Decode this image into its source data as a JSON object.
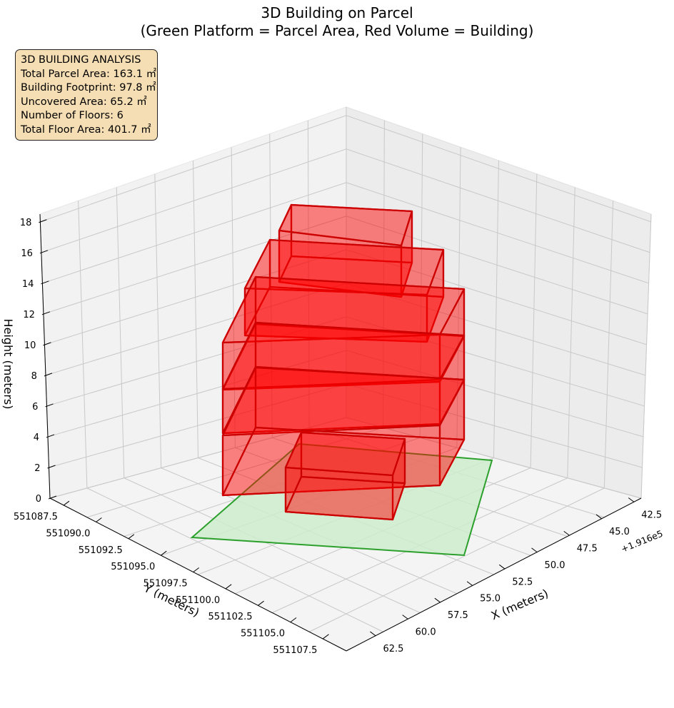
{
  "chart_data": {
    "type": "3d-box",
    "title": "3D Building on Parcel",
    "subtitle": "(Green Platform = Parcel Area, Red Volume = Building)",
    "xlabel": "X (meters)",
    "ylabel": "Y (meters)",
    "zlabel": "Height (meters)",
    "x_offset_label": "+1.916e5",
    "x_ticks": [
      "42.5",
      "45.0",
      "47.5",
      "50.0",
      "52.5",
      "55.0",
      "57.5",
      "60.0",
      "62.5"
    ],
    "y_ticks": [
      "551087.5",
      "551090.0",
      "551092.5",
      "551095.0",
      "551097.5",
      "551100.0",
      "551102.5",
      "551105.0",
      "551107.5"
    ],
    "z_ticks": [
      "0",
      "2",
      "4",
      "6",
      "8",
      "10",
      "12",
      "14",
      "16",
      "18"
    ],
    "zlim": [
      0,
      18.5
    ],
    "grid": true,
    "colors": {
      "parcel": "#2ca02c",
      "parcel_fill": "#cdeccd",
      "building": "#ff0000",
      "panes": "#f2f2f2",
      "info_bg": "#f5deb3"
    },
    "info_box": {
      "title": "3D BUILDING ANALYSIS",
      "lines": [
        "Total Parcel Area: 163.1 ㎡",
        "Building Footprint: 97.8 ㎡",
        "Uncovered Area: 65.2 ㎡",
        "Number of Floors: 6",
        "Total Floor Area: 401.7 ㎡"
      ]
    },
    "series": [
      {
        "name": "Parcel Area"
      },
      {
        "name": "Building"
      }
    ]
  }
}
